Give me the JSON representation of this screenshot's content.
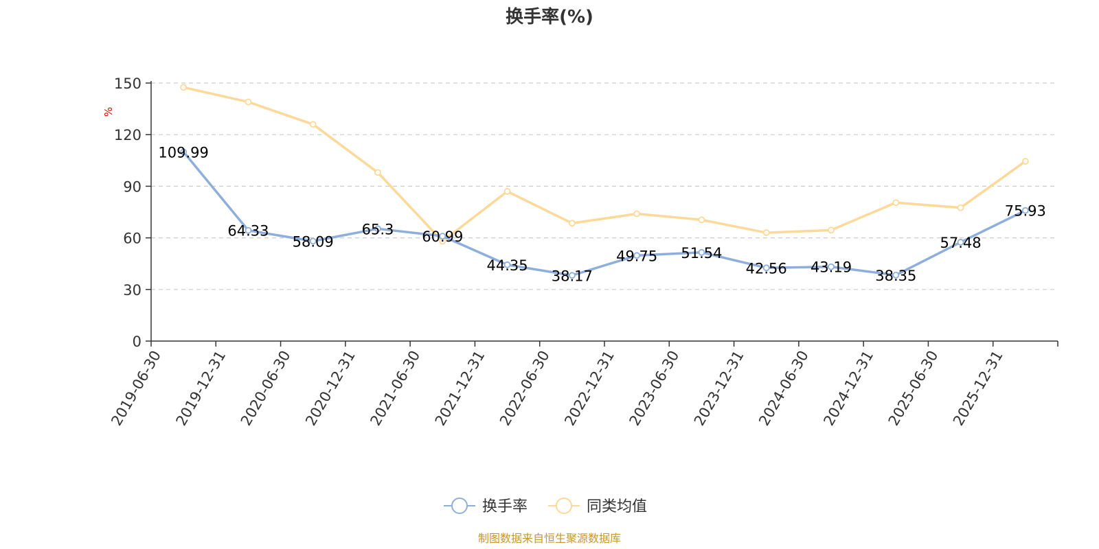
{
  "chart_data": {
    "type": "line",
    "title": "换手率(%)",
    "ylabel": "%",
    "categories": [
      "2019-06-30",
      "2019-12-31",
      "2020-06-30",
      "2020-12-31",
      "2021-06-30",
      "2021-12-31",
      "2022-06-30",
      "2022-12-31",
      "2023-06-30",
      "2023-12-31",
      "2024-06-30",
      "2024-12-31",
      "2025-06-30",
      "2025-12-31"
    ],
    "yticks": [
      "0",
      "30",
      "60",
      "90",
      "120",
      "150"
    ],
    "ylim": [
      0,
      150
    ],
    "grid": true,
    "legend_position": "bottom",
    "series": [
      {
        "name": "换手率",
        "color": "#8eaedb",
        "values": [
          109.99,
          64.33,
          58.09,
          65.3,
          60.99,
          44.35,
          38.17,
          49.75,
          51.54,
          42.56,
          43.19,
          38.35,
          57.48,
          75.93
        ],
        "labels": [
          "109.99",
          "64.33",
          "58.09",
          "65.3",
          "60.99",
          "44.35",
          "38.17",
          "49.75",
          "51.54",
          "42.56",
          "43.19",
          "38.35",
          "57.48",
          "75.93"
        ]
      },
      {
        "name": "同类均值",
        "color": "#fcd998",
        "values": [
          147.5,
          139.0,
          126.0,
          98.0,
          58.0,
          87.0,
          68.5,
          74.0,
          70.5,
          63.0,
          64.5,
          80.5,
          77.5,
          104.5
        ]
      }
    ]
  },
  "footer": {
    "source": "制图数据来自恒生聚源数据库"
  }
}
